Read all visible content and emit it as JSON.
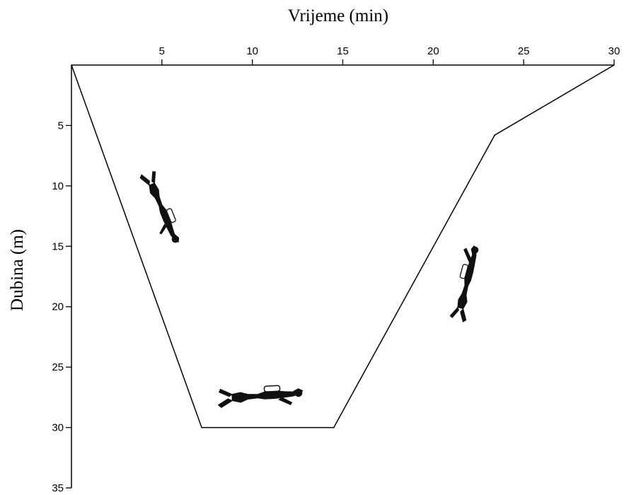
{
  "chart_data": {
    "type": "line",
    "xlabel": "Vrijeme (min)",
    "ylabel": "Dubina (m)",
    "x_axis_position": "top",
    "y_axis_inverted": true,
    "xlim": [
      0,
      30
    ],
    "ylim": [
      0,
      35
    ],
    "xticks": [
      5,
      10,
      15,
      20,
      25,
      30
    ],
    "yticks": [
      5,
      10,
      15,
      20,
      25,
      30,
      35
    ],
    "grid": false,
    "series": [
      {
        "points": [
          {
            "x": 0,
            "y": 0
          },
          {
            "x": 7.2,
            "y": 30
          },
          {
            "x": 14.5,
            "y": 30
          },
          {
            "x": 23.4,
            "y": 5.8
          },
          {
            "x": 30,
            "y": 0
          }
        ]
      }
    ],
    "illustrations": [
      "diver-descending",
      "diver-bottom",
      "diver-ascending"
    ]
  }
}
